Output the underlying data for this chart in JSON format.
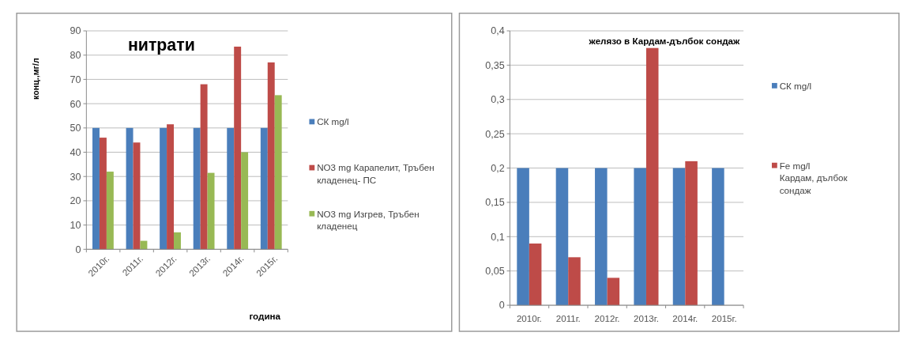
{
  "chart_data": [
    {
      "type": "bar",
      "title": "нитрати",
      "xlabel": "година",
      "ylabel": "конц.,мг/л",
      "categories": [
        "2010г.",
        "2011г.",
        "2012г.",
        "2013г.",
        "2014г.",
        "2015г."
      ],
      "series": [
        {
          "name": "СК mg/l",
          "color": "#4a7ebb",
          "values": [
            50,
            50,
            50,
            50,
            50,
            50
          ]
        },
        {
          "name": "NO3  mg  Карапелит, Тръбен кладенец- ПС",
          "color": "#be4b48",
          "values": [
            46,
            44,
            51.5,
            68,
            83.5,
            77
          ]
        },
        {
          "name": "NO3  mg Изгрев, Тръбен кладенец",
          "color": "#98b954",
          "values": [
            32,
            3.5,
            7,
            31.5,
            40,
            63.5
          ]
        }
      ],
      "ylim": [
        0,
        90
      ],
      "yticks": [
        0,
        10,
        20,
        30,
        40,
        50,
        60,
        70,
        80,
        90
      ],
      "grid": "y",
      "legend": "right"
    },
    {
      "type": "bar",
      "title": "желязо в Кардам-дълбок сондаж",
      "categories": [
        "2010г.",
        "2011г.",
        "2012г.",
        "2013г.",
        "2014г.",
        "2015г."
      ],
      "series": [
        {
          "name": "СК mg/l",
          "color": "#4a7ebb",
          "values": [
            0.2,
            0.2,
            0.2,
            0.2,
            0.2,
            0.2
          ]
        },
        {
          "name": "Fe  mg/l Кардам, дълбок сондаж",
          "color": "#be4b48",
          "values": [
            0.09,
            0.07,
            0.04,
            0.375,
            0.21,
            null
          ]
        }
      ],
      "ylim": [
        0,
        0.4
      ],
      "yticks": [
        0,
        {
          "value": 0.05,
          "label": "0,05"
        },
        {
          "value": 0.1,
          "label": "0,1"
        },
        {
          "value": 0.15,
          "label": "0,15"
        },
        {
          "value": 0.2,
          "label": "0,2"
        },
        {
          "value": 0.25,
          "label": "0,25"
        },
        {
          "value": 0.3,
          "label": "0,3"
        },
        {
          "value": 0.35,
          "label": "0,35"
        },
        {
          "value": 0.4,
          "label": "0,4"
        }
      ],
      "grid": "y",
      "legend": "right"
    }
  ]
}
